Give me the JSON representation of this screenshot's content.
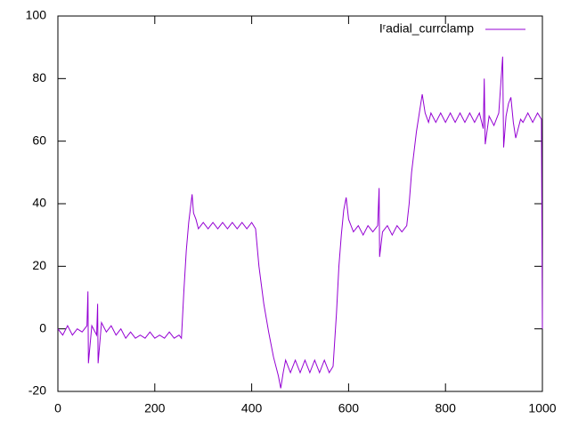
{
  "chart_data": {
    "type": "line",
    "x": [
      0,
      10,
      20,
      30,
      40,
      50,
      60,
      62,
      63,
      70,
      80,
      82,
      83,
      90,
      100,
      110,
      120,
      130,
      140,
      150,
      160,
      170,
      180,
      190,
      200,
      210,
      220,
      230,
      240,
      250,
      255,
      260,
      265,
      270,
      277,
      280,
      285,
      290,
      300,
      310,
      320,
      330,
      340,
      350,
      360,
      370,
      380,
      390,
      400,
      408,
      415,
      425,
      435,
      445,
      455,
      460,
      465,
      470,
      480,
      490,
      500,
      510,
      520,
      530,
      540,
      550,
      560,
      568,
      575,
      580,
      585,
      590,
      595,
      600,
      605,
      610,
      620,
      630,
      640,
      650,
      660,
      663,
      664,
      670,
      680,
      690,
      700,
      710,
      720,
      725,
      730,
      740,
      745,
      752,
      758,
      765,
      770,
      780,
      790,
      800,
      810,
      820,
      830,
      840,
      850,
      860,
      870,
      878,
      880,
      882,
      890,
      900,
      910,
      918,
      920,
      925,
      930,
      935,
      940,
      945,
      950,
      955,
      960,
      970,
      980,
      990,
      998,
      1000
    ],
    "series": [
      {
        "name": "Iʳadial_currclamp",
        "color": "#9400d3",
        "values": [
          0,
          -2,
          1,
          -2,
          0,
          -1,
          1,
          12,
          -11,
          1,
          -2,
          8,
          -11,
          2,
          -1,
          1,
          -2,
          0,
          -3,
          -1,
          -3,
          -2,
          -3,
          -1,
          -3,
          -2,
          -3,
          -1,
          -3,
          -2,
          -3,
          12,
          25,
          34,
          43,
          37,
          35,
          32,
          34,
          32,
          34,
          32,
          34,
          32,
          34,
          32,
          34,
          32,
          34,
          32,
          20,
          8,
          -1,
          -9,
          -15,
          -19,
          -14,
          -10,
          -14,
          -10,
          -14,
          -10,
          -14,
          -10,
          -14,
          -10,
          -14,
          -12,
          5,
          20,
          30,
          38,
          42,
          35,
          33,
          31,
          33,
          30,
          33,
          31,
          33,
          45,
          23,
          31,
          33,
          30,
          33,
          31,
          33,
          40,
          50,
          63,
          68,
          75,
          69,
          66,
          69,
          66,
          69,
          66,
          69,
          66,
          69,
          66,
          69,
          66,
          69,
          64,
          80,
          59,
          68,
          65,
          69,
          87,
          58,
          68,
          72,
          74,
          66,
          61,
          64,
          67,
          66,
          69,
          66,
          69,
          67,
          0
        ]
      }
    ],
    "xlim": [
      0,
      1000
    ],
    "xticks": [
      0,
      200,
      400,
      600,
      800,
      1000
    ],
    "ylim": [
      -20,
      100
    ],
    "yticks": [
      -20,
      0,
      20,
      40,
      60,
      80,
      100
    ],
    "legend": "top-right"
  }
}
